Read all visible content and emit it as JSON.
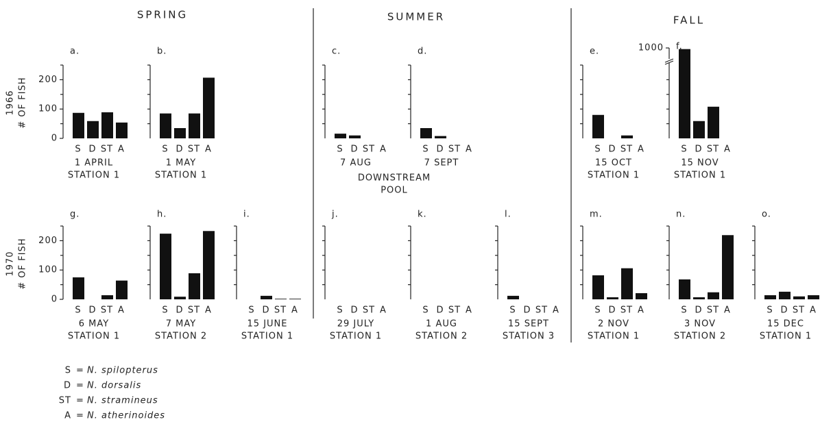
{
  "headers": [
    "SPRING",
    "SUMMER",
    "FALL"
  ],
  "row_labels": [
    {
      "year": "1966",
      "label": "# OF FISH"
    },
    {
      "year": "1970",
      "label": "# OF FISH"
    }
  ],
  "note": [
    "DOWNSTREAM",
    "POOL"
  ],
  "legend": [
    {
      "code": "S",
      "name": "N. spilopterus"
    },
    {
      "code": "D",
      "name": "N. dorsalis"
    },
    {
      "code": "ST",
      "name": "N. stramineus"
    },
    {
      "code": "A",
      "name": "N. atherinoides"
    }
  ],
  "chart_data": [
    {
      "type": "bar",
      "title": "a.",
      "categories": [
        "S",
        "D",
        "ST",
        "A"
      ],
      "values": [
        87,
        59,
        89,
        54
      ],
      "captions": [
        "1 APRIL",
        "STATION 1"
      ],
      "ylim": [
        0,
        250
      ],
      "yticks": [
        0,
        100,
        200
      ],
      "minor_yticks": [
        50,
        150,
        250
      ],
      "color": "#111111"
    },
    {
      "type": "bar",
      "title": "b.",
      "categories": [
        "S",
        "D",
        "ST",
        "A"
      ],
      "values": [
        85,
        35,
        85,
        207
      ],
      "captions": [
        "1 MAY",
        "STATION 1"
      ],
      "ylim": [
        0,
        250
      ],
      "minor_yticks": [
        50,
        100,
        150,
        200,
        250
      ],
      "color": "#111111"
    },
    {
      "type": "bar",
      "title": "c.",
      "categories": [
        "S",
        "D",
        "ST",
        "A"
      ],
      "values": [
        16,
        10,
        0,
        0
      ],
      "captions": [
        "7 AUG"
      ],
      "ylim": [
        0,
        250
      ],
      "minor_yticks": [
        50,
        100,
        150,
        200,
        250
      ],
      "color": "#111111"
    },
    {
      "type": "bar",
      "title": "d.",
      "categories": [
        "S",
        "D",
        "ST",
        "A"
      ],
      "values": [
        35,
        8,
        0,
        0
      ],
      "captions": [
        "7 SEPT"
      ],
      "ylim": [
        0,
        250
      ],
      "minor_yticks": [
        50,
        100,
        150,
        200,
        250
      ],
      "color": "#111111"
    },
    {
      "type": "bar",
      "title": "e.",
      "categories": [
        "S",
        "D",
        "ST",
        "A"
      ],
      "values": [
        80,
        0,
        10,
        0
      ],
      "captions": [
        "15 OCT",
        "STATION 1"
      ],
      "ylim": [
        0,
        250
      ],
      "minor_yticks": [
        50,
        100,
        150,
        200,
        250
      ],
      "color": "#111111"
    },
    {
      "type": "bar",
      "title": "f.",
      "categories": [
        "S",
        "D",
        "ST",
        "A"
      ],
      "values": [
        950,
        59,
        108,
        0
      ],
      "captions": [
        "15 NOV",
        "STATION 1"
      ],
      "ylim": [
        0,
        1000
      ],
      "y_break": 250,
      "yticks": [
        1000
      ],
      "minor_yticks": [
        50,
        100,
        150,
        200
      ],
      "color": "#111111"
    },
    {
      "type": "bar",
      "title": "g.",
      "categories": [
        "S",
        "D",
        "ST",
        "A"
      ],
      "values": [
        75,
        0,
        14,
        64
      ],
      "captions": [
        "6 MAY",
        "STATION 1"
      ],
      "ylim": [
        0,
        250
      ],
      "yticks": [
        0,
        100,
        200
      ],
      "minor_yticks": [
        50,
        150,
        250
      ],
      "color": "#111111"
    },
    {
      "type": "bar",
      "title": "h.",
      "categories": [
        "S",
        "D",
        "ST",
        "A"
      ],
      "values": [
        224,
        9,
        89,
        233
      ],
      "captions": [
        "7 MAY",
        "STATION 2"
      ],
      "ylim": [
        0,
        250
      ],
      "minor_yticks": [
        50,
        100,
        150,
        200,
        250
      ],
      "color": "#111111"
    },
    {
      "type": "bar",
      "title": "i.",
      "categories": [
        "S",
        "D",
        "ST",
        "A"
      ],
      "values": [
        0,
        12,
        2,
        2
      ],
      "captions": [
        "15 JUNE",
        "STATION 1"
      ],
      "ylim": [
        0,
        250
      ],
      "minor_yticks": [
        50,
        100,
        150,
        200,
        250
      ],
      "color": "#111111"
    },
    {
      "type": "bar",
      "title": "j.",
      "categories": [
        "S",
        "D",
        "ST",
        "A"
      ],
      "values": [
        0,
        0,
        0,
        0
      ],
      "captions": [
        "29 JULY",
        "STATION 1"
      ],
      "ylim": [
        0,
        250
      ],
      "minor_yticks": [
        50,
        100,
        150,
        200,
        250
      ],
      "color": "#111111"
    },
    {
      "type": "bar",
      "title": "k.",
      "categories": [
        "S",
        "D",
        "ST",
        "A"
      ],
      "values": [
        0,
        0,
        0,
        0
      ],
      "captions": [
        "1 AUG",
        "STATION 2"
      ],
      "ylim": [
        0,
        250
      ],
      "minor_yticks": [
        50,
        100,
        150,
        200,
        250
      ],
      "color": "#111111"
    },
    {
      "type": "bar",
      "title": "l.",
      "categories": [
        "S",
        "D",
        "ST",
        "A"
      ],
      "values": [
        12,
        0,
        0,
        0
      ],
      "captions": [
        "15 SEPT",
        "STATION 3"
      ],
      "ylim": [
        0,
        250
      ],
      "minor_yticks": [
        50,
        100,
        150,
        200,
        250
      ],
      "color": "#111111"
    },
    {
      "type": "bar",
      "title": "m.",
      "categories": [
        "S",
        "D",
        "ST",
        "A"
      ],
      "values": [
        82,
        7,
        106,
        21
      ],
      "captions": [
        "2 NOV",
        "STATION 1"
      ],
      "ylim": [
        0,
        250
      ],
      "minor_yticks": [
        50,
        100,
        150,
        200,
        250
      ],
      "color": "#111111"
    },
    {
      "type": "bar",
      "title": "n.",
      "categories": [
        "S",
        "D",
        "ST",
        "A"
      ],
      "values": [
        68,
        7,
        24,
        219
      ],
      "captions": [
        "3 NOV",
        "STATION 2"
      ],
      "ylim": [
        0,
        250
      ],
      "minor_yticks": [
        50,
        100,
        150,
        200,
        250
      ],
      "color": "#111111"
    },
    {
      "type": "bar",
      "title": "o.",
      "categories": [
        "S",
        "D",
        "ST",
        "A"
      ],
      "values": [
        14,
        26,
        10,
        14
      ],
      "captions": [
        "15 DEC",
        "STATION 1"
      ],
      "ylim": [
        0,
        250
      ],
      "minor_yticks": [
        50,
        100,
        150,
        200,
        250
      ],
      "color": "#111111"
    }
  ]
}
